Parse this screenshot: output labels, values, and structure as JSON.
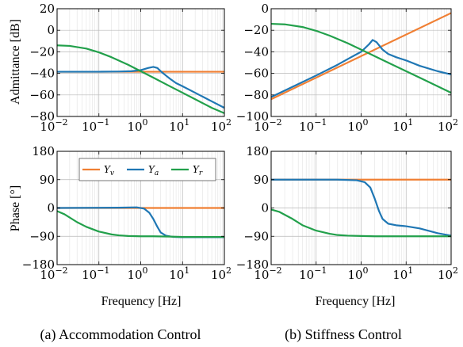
{
  "colors": {
    "Y_v": "#f07f33",
    "Y_a": "#1f77b4",
    "Y_r": "#22a04b"
  },
  "captions": [
    "(a) Accommodation Control",
    "(b) Stiffness Control"
  ],
  "legend": {
    "entries": [
      {
        "key": "Y_v",
        "base": "Y",
        "sub": "v"
      },
      {
        "key": "Y_a",
        "base": "Y",
        "sub": "a"
      },
      {
        "key": "Y_r",
        "base": "Y",
        "sub": "r"
      }
    ]
  },
  "chart_data": [
    {
      "id": "acc-mag",
      "type": "line",
      "title": "",
      "xlabel": "",
      "ylabel": "Admittance [dB]",
      "xscale": "log",
      "xlim": [
        0.01,
        100
      ],
      "ylim": [
        -80,
        20
      ],
      "xticks": [
        0.01,
        0.1,
        1,
        10,
        100
      ],
      "xtick_labels": [
        [
          "10",
          "−2"
        ],
        [
          "10",
          "−1"
        ],
        [
          "10",
          "0"
        ],
        [
          "10",
          "1"
        ],
        [
          "10",
          "2"
        ]
      ],
      "yticks": [
        -80,
        -60,
        -40,
        -20,
        0,
        20
      ],
      "ytick_labels": [
        "−80",
        "−60",
        "−40",
        "−20",
        "0",
        "20"
      ],
      "grid": true,
      "series": [
        {
          "key": "Y_v",
          "x": [
            0.01,
            100
          ],
          "y": [
            -38.5,
            -38.5
          ]
        },
        {
          "key": "Y_a",
          "x": [
            0.01,
            0.1,
            0.3,
            0.6,
            1,
            1.5,
            2,
            2.5,
            3,
            4,
            5,
            7,
            10,
            20,
            50,
            100
          ],
          "y": [
            -38.5,
            -38.5,
            -38.3,
            -38,
            -37,
            -35,
            -34,
            -35,
            -38,
            -42,
            -45,
            -49,
            -52,
            -58,
            -66,
            -72
          ]
        },
        {
          "key": "Y_r",
          "x": [
            0.01,
            0.02,
            0.05,
            0.1,
            0.2,
            0.5,
            1,
            2,
            5,
            10,
            20,
            50,
            100
          ],
          "y": [
            -14,
            -14.5,
            -17,
            -20.5,
            -25,
            -32,
            -38,
            -44,
            -52,
            -58,
            -64,
            -72,
            -77
          ]
        }
      ]
    },
    {
      "id": "stiff-mag",
      "type": "line",
      "title": "",
      "xlabel": "",
      "ylabel": "",
      "xscale": "log",
      "xlim": [
        0.01,
        100
      ],
      "ylim": [
        -100,
        0
      ],
      "xticks": [
        0.01,
        0.1,
        1,
        10,
        100
      ],
      "xtick_labels": [
        [
          "10",
          "−2"
        ],
        [
          "10",
          "−1"
        ],
        [
          "10",
          "0"
        ],
        [
          "10",
          "1"
        ],
        [
          "10",
          "2"
        ]
      ],
      "yticks": [
        -100,
        -80,
        -60,
        -40,
        -20,
        0
      ],
      "ytick_labels": [
        "−100",
        "−80",
        "−60",
        "−40",
        "−20",
        "0"
      ],
      "grid": true,
      "series": [
        {
          "key": "Y_v",
          "x": [
            0.01,
            100
          ],
          "y": [
            -84,
            -4
          ]
        },
        {
          "key": "Y_a",
          "x": [
            0.01,
            0.1,
            0.3,
            0.6,
            1,
            1.5,
            1.8,
            2.2,
            3,
            4,
            6,
            10,
            20,
            50,
            100
          ],
          "y": [
            -82,
            -62,
            -52,
            -45,
            -40,
            -33,
            -29,
            -31,
            -38,
            -42,
            -45,
            -48,
            -53,
            -58,
            -61
          ]
        },
        {
          "key": "Y_r",
          "x": [
            0.01,
            0.02,
            0.05,
            0.1,
            0.2,
            0.5,
            1,
            2,
            5,
            10,
            20,
            50,
            100
          ],
          "y": [
            -14,
            -14.5,
            -17,
            -20.5,
            -25,
            -32,
            -38,
            -44,
            -52,
            -58,
            -64,
            -72,
            -78
          ]
        }
      ]
    },
    {
      "id": "acc-phase",
      "type": "line",
      "title": "",
      "xlabel": "Frequency [Hz]",
      "ylabel": "Phase [°]",
      "xscale": "log",
      "xlim": [
        0.01,
        100
      ],
      "ylim": [
        -180,
        180
      ],
      "xticks": [
        0.01,
        0.1,
        1,
        10,
        100
      ],
      "xtick_labels": [
        [
          "10",
          "−2"
        ],
        [
          "10",
          "−1"
        ],
        [
          "10",
          "0"
        ],
        [
          "10",
          "1"
        ],
        [
          "10",
          "2"
        ]
      ],
      "yticks": [
        -180,
        -90,
        0,
        90,
        180
      ],
      "ytick_labels": [
        "−180",
        "−90",
        "0",
        "90",
        "180"
      ],
      "grid": true,
      "legend": "top",
      "series": [
        {
          "key": "Y_v",
          "x": [
            0.01,
            100
          ],
          "y": [
            0,
            0
          ]
        },
        {
          "key": "Y_a",
          "x": [
            0.01,
            0.3,
            0.8,
            1.2,
            1.6,
            2,
            2.5,
            3,
            4,
            6,
            10,
            100
          ],
          "y": [
            0,
            1,
            2,
            -2,
            -15,
            -35,
            -60,
            -78,
            -88,
            -92,
            -93,
            -93
          ]
        },
        {
          "key": "Y_r",
          "x": [
            0.01,
            0.015,
            0.03,
            0.05,
            0.1,
            0.2,
            0.3,
            0.5,
            1,
            2,
            5,
            10,
            100
          ],
          "y": [
            -10,
            -20,
            -45,
            -60,
            -75,
            -84,
            -87,
            -89,
            -90,
            -90,
            -91,
            -92,
            -92
          ]
        }
      ]
    },
    {
      "id": "stiff-phase",
      "type": "line",
      "title": "",
      "xlabel": "Frequency [Hz]",
      "ylabel": "",
      "xscale": "log",
      "xlim": [
        0.01,
        100
      ],
      "ylim": [
        -180,
        180
      ],
      "xticks": [
        0.01,
        0.1,
        1,
        10,
        100
      ],
      "xtick_labels": [
        [
          "10",
          "−2"
        ],
        [
          "10",
          "−1"
        ],
        [
          "10",
          "0"
        ],
        [
          "10",
          "1"
        ],
        [
          "10",
          "2"
        ]
      ],
      "yticks": [
        -180,
        -90,
        0,
        90,
        180
      ],
      "ytick_labels": [
        "−180",
        "−90",
        "0",
        "90",
        "180"
      ],
      "grid": true,
      "series": [
        {
          "key": "Y_v",
          "x": [
            0.01,
            100
          ],
          "y": [
            90,
            90
          ]
        },
        {
          "key": "Y_a",
          "x": [
            0.01,
            0.3,
            0.8,
            1.2,
            1.6,
            2,
            2.5,
            3,
            4,
            6,
            10,
            20,
            50,
            100
          ],
          "y": [
            90,
            90,
            88,
            82,
            65,
            30,
            -10,
            -35,
            -50,
            -55,
            -58,
            -65,
            -80,
            -88
          ]
        },
        {
          "key": "Y_r",
          "x": [
            0.01,
            0.015,
            0.03,
            0.05,
            0.1,
            0.2,
            0.3,
            0.5,
            1,
            2,
            5,
            10,
            100
          ],
          "y": [
            -5,
            -12,
            -35,
            -55,
            -72,
            -82,
            -86,
            -88,
            -89,
            -90,
            -90,
            -90,
            -90
          ]
        }
      ]
    }
  ]
}
